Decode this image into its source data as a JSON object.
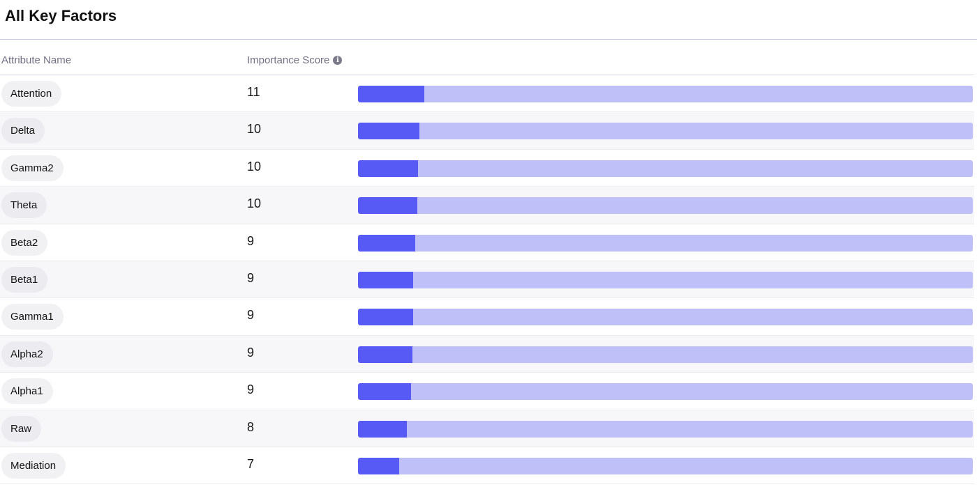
{
  "title": "All Key Factors",
  "header": {
    "attribute_name": "Attribute Name",
    "importance_score": "Importance Score"
  },
  "colors": {
    "bar_fill": "#575af5",
    "bar_track": "#bfc0f8"
  },
  "icons": {
    "info": "info-icon"
  },
  "rows": [
    {
      "name": "Attention",
      "score": "11",
      "fill": 0.108
    },
    {
      "name": "Delta",
      "score": "10",
      "fill": 0.1
    },
    {
      "name": "Gamma2",
      "score": "10",
      "fill": 0.098
    },
    {
      "name": "Theta",
      "score": "10",
      "fill": 0.097
    },
    {
      "name": "Beta2",
      "score": "9",
      "fill": 0.093
    },
    {
      "name": "Beta1",
      "score": "9",
      "fill": 0.09
    },
    {
      "name": "Gamma1",
      "score": "9",
      "fill": 0.09
    },
    {
      "name": "Alpha2",
      "score": "9",
      "fill": 0.088
    },
    {
      "name": "Alpha1",
      "score": "9",
      "fill": 0.086
    },
    {
      "name": "Raw",
      "score": "8",
      "fill": 0.079
    },
    {
      "name": "Mediation",
      "score": "7",
      "fill": 0.067
    }
  ]
}
